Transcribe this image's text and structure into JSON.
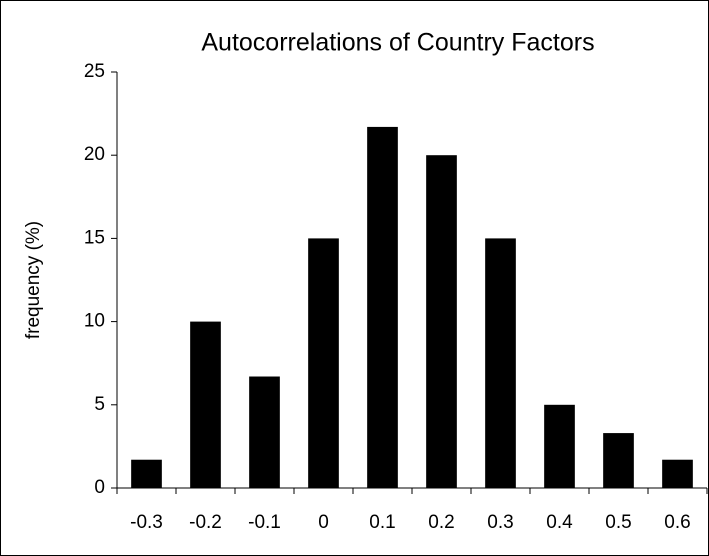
{
  "chart_data": {
    "type": "bar",
    "title": "Autocorrelations of Country Factors",
    "y_label": "frequency (%)",
    "categories": [
      "-0.3",
      "-0.2",
      "-0.1",
      "0",
      "0.1",
      "0.2",
      "0.3",
      "0.4",
      "0.5",
      "0.6"
    ],
    "values": [
      1.7,
      10,
      6.7,
      15,
      21.7,
      20,
      15,
      5,
      3.3,
      1.7
    ],
    "color": "#000000",
    "ylim": [
      0,
      25
    ],
    "yticks": [
      0,
      5,
      10,
      15,
      20,
      25
    ],
    "grid": false
  }
}
